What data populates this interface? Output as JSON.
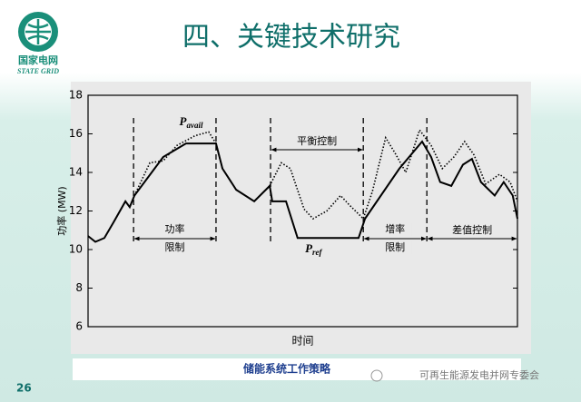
{
  "slide": {
    "title": "四、关键技术研究",
    "logo_cn": "国家电网",
    "logo_en": "STATE GRID",
    "caption": "储能系统工作策略",
    "watermark": "可再生能源发电并网专委会",
    "page_number": "26"
  },
  "chart_data": {
    "type": "line",
    "x_label": "时间",
    "y_label": "功率 (MW)",
    "xlim": [
      0,
      100
    ],
    "ylim": [
      6,
      18
    ],
    "yticks": [
      6,
      8,
      10,
      12,
      14,
      16,
      18
    ],
    "series": [
      {
        "color": "#000000",
        "style": "solid",
        "x": [
          0,
          1.7,
          3.8,
          5.9,
          8.7,
          9.7,
          10.8,
          17.5,
          22.8,
          29.8,
          31.3,
          34.5,
          38.7,
          42.3,
          42.9,
          46.1,
          48.8,
          63.0,
          64.5,
          72.5,
          77.8,
          79.9,
          82.0,
          84.6,
          87.3,
          89.4,
          91.5,
          94.7,
          96.8,
          98.9,
          100
        ],
        "values": [
          10.7,
          10.4,
          10.6,
          11.4,
          12.5,
          12.2,
          12.8,
          14.8,
          15.5,
          15.5,
          14.2,
          13.1,
          12.5,
          13.3,
          12.5,
          12.5,
          10.6,
          10.6,
          11.6,
          14.2,
          15.6,
          14.8,
          13.5,
          13.3,
          14.4,
          14.7,
          13.5,
          12.8,
          13.5,
          12.8,
          11.6
        ]
      },
      {
        "color": "#000000",
        "style": "dotted",
        "x": [
          10.8,
          14.4,
          17.5,
          20.7,
          24.9,
          28.1,
          29.8,
          31.3,
          38.0,
          42.3,
          45.0,
          47.1,
          50.3,
          52.4,
          55.6,
          58.8,
          60.9,
          64.1,
          66.2,
          69.3,
          71.5,
          74.0,
          77.2,
          79.9,
          82.5,
          85.2,
          87.7,
          89.9,
          92.6,
          95.8,
          98.3,
          100
        ],
        "values": [
          12.8,
          14.5,
          14.6,
          15.4,
          15.9,
          16.1,
          15.5,
          14.2,
          null,
          13.3,
          14.5,
          14.2,
          12.1,
          11.6,
          12.0,
          12.8,
          12.3,
          11.6,
          13.0,
          15.8,
          15.0,
          14.0,
          16.2,
          15.4,
          14.2,
          14.8,
          15.6,
          14.9,
          13.4,
          13.9,
          13.5,
          12.5
        ]
      }
    ],
    "annotations": [
      {
        "text": "P",
        "subscript": "avail",
        "x": 24.0,
        "y": 16.6
      },
      {
        "text": "P",
        "subscript": "ref",
        "x": 52.5,
        "y": 10.0
      }
    ],
    "regions": [
      {
        "label": [
          "功率",
          "限制"
        ],
        "x": [
          10.6,
          29.8
        ],
        "row": "low"
      },
      {
        "label": [
          "平衡控制"
        ],
        "x": [
          42.5,
          64.1
        ],
        "row": "high"
      },
      {
        "label": [
          "增率",
          "限制"
        ],
        "x": [
          64.1,
          78.9
        ],
        "row": "low"
      },
      {
        "label": [
          "差值控制"
        ],
        "x": [
          78.9,
          100
        ],
        "row": "low"
      }
    ]
  }
}
